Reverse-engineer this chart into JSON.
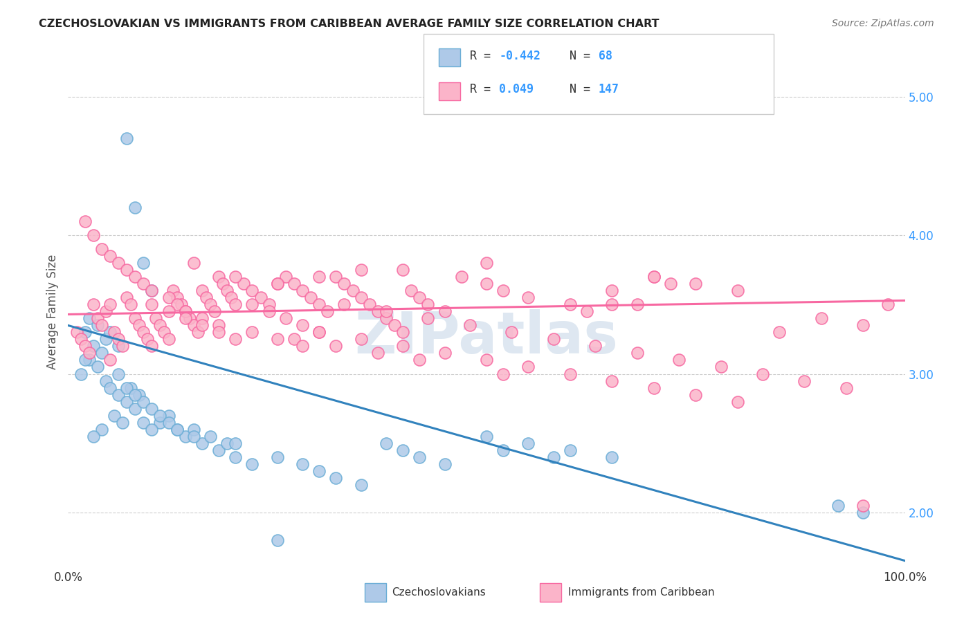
{
  "title": "CZECHOSLOVAKIAN VS IMMIGRANTS FROM CARIBBEAN AVERAGE FAMILY SIZE CORRELATION CHART",
  "source_text": "Source: ZipAtlas.com",
  "ylabel": "Average Family Size",
  "xlim": [
    0.0,
    1.0
  ],
  "ylim": [
    1.6,
    5.3
  ],
  "yticks": [
    2.0,
    3.0,
    4.0,
    5.0
  ],
  "xticks": [
    0.0,
    0.25,
    0.5,
    0.75,
    1.0
  ],
  "xticklabels": [
    "0.0%",
    "",
    "",
    "",
    "100.0%"
  ],
  "yticklabels_right": [
    "2.00",
    "3.00",
    "4.00",
    "5.00"
  ],
  "blue_color": "#6baed6",
  "blue_face": "#aec9e8",
  "pink_color": "#f768a1",
  "pink_face": "#fbb4c9",
  "trend_blue": "#3182bd",
  "trend_pink": "#f768a1",
  "watermark": "ZIPatlas",
  "watermark_color": "#c8d8e8",
  "background": "#ffffff",
  "grid_color": "#cccccc",
  "blue_scatter_x": [
    0.02,
    0.03,
    0.04,
    0.025,
    0.035,
    0.015,
    0.045,
    0.05,
    0.06,
    0.07,
    0.08,
    0.055,
    0.065,
    0.04,
    0.03,
    0.025,
    0.035,
    0.045,
    0.02,
    0.06,
    0.075,
    0.085,
    0.09,
    0.1,
    0.12,
    0.11,
    0.13,
    0.14,
    0.16,
    0.18,
    0.2,
    0.22,
    0.15,
    0.17,
    0.19,
    0.25,
    0.28,
    0.3,
    0.32,
    0.35,
    0.38,
    0.4,
    0.42,
    0.45,
    0.5,
    0.55,
    0.6,
    0.65,
    0.52,
    0.58,
    0.07,
    0.08,
    0.09,
    0.1,
    0.11,
    0.12,
    0.13,
    0.05,
    0.06,
    0.07,
    0.08,
    0.09,
    0.1,
    0.15,
    0.2,
    0.25,
    0.92,
    0.95
  ],
  "blue_scatter_y": [
    3.3,
    3.2,
    3.15,
    3.1,
    3.05,
    3.0,
    2.95,
    2.9,
    2.85,
    2.8,
    2.75,
    2.7,
    2.65,
    2.6,
    2.55,
    3.4,
    3.35,
    3.25,
    3.1,
    3.0,
    2.9,
    2.85,
    2.8,
    2.75,
    2.7,
    2.65,
    2.6,
    2.55,
    2.5,
    2.45,
    2.4,
    2.35,
    2.6,
    2.55,
    2.5,
    2.4,
    2.35,
    2.3,
    2.25,
    2.2,
    2.5,
    2.45,
    2.4,
    2.35,
    2.55,
    2.5,
    2.45,
    2.4,
    2.45,
    2.4,
    4.7,
    4.2,
    3.8,
    3.6,
    2.7,
    2.65,
    2.6,
    3.3,
    3.2,
    2.9,
    2.85,
    2.65,
    2.6,
    2.55,
    2.5,
    1.8,
    2.05,
    2.0
  ],
  "pink_scatter_x": [
    0.01,
    0.015,
    0.02,
    0.025,
    0.03,
    0.035,
    0.04,
    0.045,
    0.05,
    0.055,
    0.06,
    0.065,
    0.07,
    0.075,
    0.08,
    0.085,
    0.09,
    0.095,
    0.1,
    0.105,
    0.11,
    0.115,
    0.12,
    0.125,
    0.13,
    0.135,
    0.14,
    0.145,
    0.15,
    0.155,
    0.16,
    0.165,
    0.17,
    0.175,
    0.18,
    0.185,
    0.19,
    0.195,
    0.2,
    0.21,
    0.22,
    0.23,
    0.24,
    0.25,
    0.26,
    0.27,
    0.28,
    0.29,
    0.3,
    0.31,
    0.32,
    0.33,
    0.34,
    0.35,
    0.36,
    0.37,
    0.38,
    0.39,
    0.4,
    0.41,
    0.42,
    0.43,
    0.45,
    0.47,
    0.5,
    0.52,
    0.55,
    0.6,
    0.62,
    0.65,
    0.7,
    0.75,
    0.8,
    0.35,
    0.25,
    0.15,
    0.2,
    0.3,
    0.4,
    0.5,
    0.02,
    0.03,
    0.04,
    0.05,
    0.06,
    0.07,
    0.08,
    0.09,
    0.1,
    0.12,
    0.13,
    0.14,
    0.16,
    0.18,
    0.22,
    0.27,
    0.32,
    0.37,
    0.42,
    0.52,
    0.1,
    0.12,
    0.14,
    0.16,
    0.18,
    0.2,
    0.22,
    0.24,
    0.26,
    0.28,
    0.3,
    0.35,
    0.4,
    0.45,
    0.5,
    0.55,
    0.6,
    0.65,
    0.7,
    0.75,
    0.8,
    0.85,
    0.9,
    0.95,
    0.65,
    0.7,
    0.72,
    0.68,
    0.3,
    0.25,
    0.28,
    0.33,
    0.38,
    0.43,
    0.48,
    0.53,
    0.58,
    0.63,
    0.68,
    0.73,
    0.78,
    0.83,
    0.88,
    0.93,
    0.98,
    0.05,
    0.95
  ],
  "pink_scatter_y": [
    3.3,
    3.25,
    3.2,
    3.15,
    3.5,
    3.4,
    3.35,
    3.45,
    3.1,
    3.3,
    3.25,
    3.2,
    3.55,
    3.5,
    3.4,
    3.35,
    3.3,
    3.25,
    3.2,
    3.4,
    3.35,
    3.3,
    3.25,
    3.6,
    3.55,
    3.5,
    3.45,
    3.4,
    3.35,
    3.3,
    3.6,
    3.55,
    3.5,
    3.45,
    3.7,
    3.65,
    3.6,
    3.55,
    3.5,
    3.65,
    3.6,
    3.55,
    3.5,
    3.65,
    3.7,
    3.65,
    3.6,
    3.55,
    3.5,
    3.45,
    3.7,
    3.65,
    3.6,
    3.55,
    3.5,
    3.45,
    3.4,
    3.35,
    3.3,
    3.6,
    3.55,
    3.5,
    3.45,
    3.7,
    3.65,
    3.6,
    3.55,
    3.5,
    3.45,
    3.5,
    3.7,
    3.65,
    3.6,
    3.75,
    3.65,
    3.8,
    3.7,
    3.7,
    3.75,
    3.8,
    4.1,
    4.0,
    3.9,
    3.85,
    3.8,
    3.75,
    3.7,
    3.65,
    3.6,
    3.55,
    3.5,
    3.45,
    3.4,
    3.35,
    3.3,
    3.25,
    3.2,
    3.15,
    3.1,
    3.0,
    3.5,
    3.45,
    3.4,
    3.35,
    3.3,
    3.25,
    3.5,
    3.45,
    3.4,
    3.35,
    3.3,
    3.25,
    3.2,
    3.15,
    3.1,
    3.05,
    3.0,
    2.95,
    2.9,
    2.85,
    2.8,
    3.3,
    3.4,
    3.35,
    3.6,
    3.7,
    3.65,
    3.5,
    3.3,
    3.25,
    3.2,
    3.5,
    3.45,
    3.4,
    3.35,
    3.3,
    3.25,
    3.2,
    3.15,
    3.1,
    3.05,
    3.0,
    2.95,
    2.9,
    3.5,
    3.5,
    2.05
  ],
  "blue_trendline_x": [
    0.0,
    1.0
  ],
  "blue_trendline_y": [
    3.35,
    1.65
  ],
  "pink_trendline_x": [
    0.0,
    1.0
  ],
  "pink_trendline_y": [
    3.43,
    3.53
  ]
}
